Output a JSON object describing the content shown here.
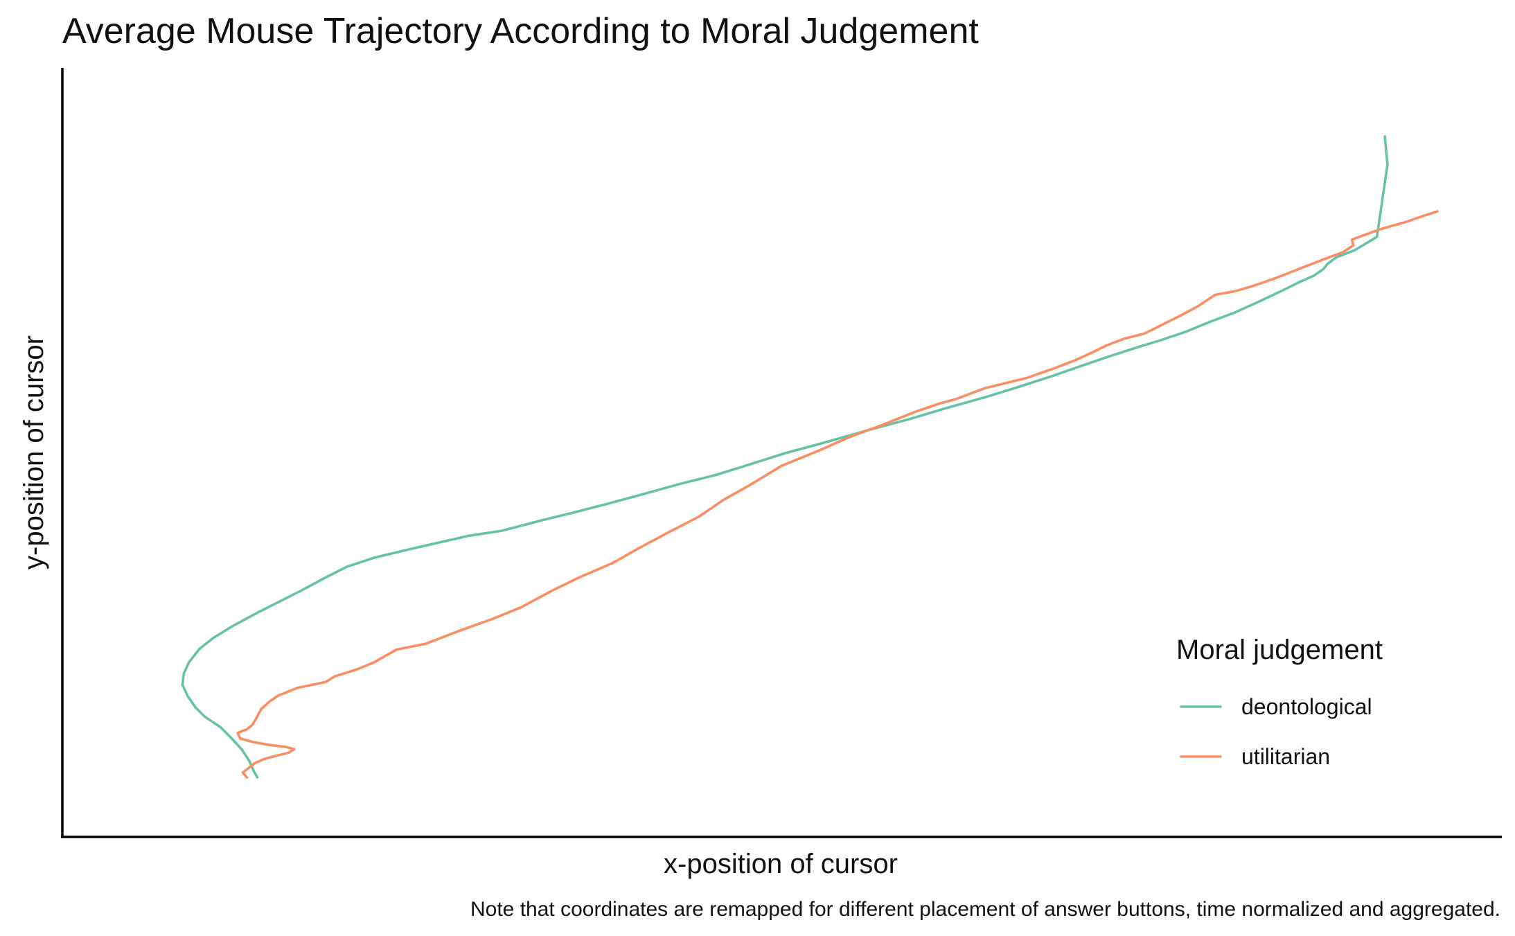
{
  "chart_data": {
    "type": "line",
    "title": "Average Mouse Trajectory According to Moral Judgement",
    "xlabel": "x-position of cursor",
    "ylabel": "y-position of cursor",
    "caption": "Note that coordinates are remapped for different placement of answer buttons, time normalized and aggregated.",
    "xlim": [
      0,
      100
    ],
    "ylim": [
      0,
      100
    ],
    "grid": false,
    "axis_ticks": false,
    "legend": {
      "title": "Moral judgement",
      "placement": "bottom-right",
      "entries": [
        "deontological",
        "utilitarian"
      ]
    },
    "series": [
      {
        "name": "deontological",
        "color": "#66c2a5",
        "points": [
          [
            10.2,
            4.5
          ],
          [
            9.9,
            5.5
          ],
          [
            9.6,
            6.8
          ],
          [
            9.0,
            8.5
          ],
          [
            8.3,
            9.9
          ],
          [
            7.4,
            11.6
          ],
          [
            6.2,
            13.1
          ],
          [
            5.5,
            14.4
          ],
          [
            4.9,
            16.0
          ],
          [
            4.5,
            17.6
          ],
          [
            4.6,
            19.2
          ],
          [
            5.0,
            20.8
          ],
          [
            5.8,
            22.7
          ],
          [
            6.9,
            24.3
          ],
          [
            8.3,
            25.9
          ],
          [
            10.2,
            27.8
          ],
          [
            13.5,
            30.9
          ],
          [
            15.3,
            32.7
          ],
          [
            17.0,
            34.3
          ],
          [
            19.1,
            35.6
          ],
          [
            22.5,
            37.1
          ],
          [
            26.3,
            38.7
          ],
          [
            28.8,
            39.4
          ],
          [
            31.9,
            40.9
          ],
          [
            34.3,
            42.0
          ],
          [
            36.8,
            43.2
          ],
          [
            39.2,
            44.4
          ],
          [
            42.1,
            45.9
          ],
          [
            45.1,
            47.3
          ],
          [
            47.5,
            48.7
          ],
          [
            50.4,
            50.4
          ],
          [
            53.2,
            51.8
          ],
          [
            56.6,
            53.6
          ],
          [
            59.8,
            55.2
          ],
          [
            62.7,
            56.8
          ],
          [
            65.6,
            58.3
          ],
          [
            68.2,
            59.8
          ],
          [
            70.7,
            61.3
          ],
          [
            73.0,
            62.8
          ],
          [
            75.4,
            64.3
          ],
          [
            77.4,
            65.5
          ],
          [
            79.0,
            66.4
          ],
          [
            80.9,
            67.6
          ],
          [
            82.6,
            68.9
          ],
          [
            84.6,
            70.3
          ],
          [
            86.5,
            71.9
          ],
          [
            88.1,
            73.3
          ],
          [
            89.5,
            74.6
          ],
          [
            90.6,
            75.5
          ],
          [
            91.3,
            76.4
          ],
          [
            91.6,
            77.1
          ],
          [
            92.3,
            78.1
          ],
          [
            93.7,
            79.1
          ],
          [
            94.6,
            80.1
          ],
          [
            95.4,
            81.0
          ],
          [
            96.2,
            91.2
          ],
          [
            96.0,
            95.2
          ]
        ]
      },
      {
        "name": "utilitarian",
        "color": "#fc8d62",
        "points": [
          [
            9.4,
            4.5
          ],
          [
            9.1,
            5.2
          ],
          [
            10.0,
            6.5
          ],
          [
            10.7,
            7.1
          ],
          [
            11.5,
            7.5
          ],
          [
            12.6,
            8.0
          ],
          [
            13.0,
            8.5
          ],
          [
            12.4,
            8.8
          ],
          [
            11.1,
            9.1
          ],
          [
            9.9,
            9.5
          ],
          [
            8.9,
            10.0
          ],
          [
            8.7,
            10.8
          ],
          [
            9.4,
            11.3
          ],
          [
            9.8,
            11.9
          ],
          [
            10.1,
            12.8
          ],
          [
            10.5,
            14.2
          ],
          [
            11.1,
            15.2
          ],
          [
            11.8,
            16.1
          ],
          [
            13.3,
            17.2
          ],
          [
            15.4,
            18.0
          ],
          [
            16.1,
            18.8
          ],
          [
            17.8,
            19.8
          ],
          [
            19.1,
            20.8
          ],
          [
            20.8,
            22.6
          ],
          [
            23.0,
            23.4
          ],
          [
            25.5,
            25.2
          ],
          [
            28.2,
            27.0
          ],
          [
            30.3,
            28.6
          ],
          [
            32.6,
            30.9
          ],
          [
            34.7,
            32.8
          ],
          [
            37.2,
            34.8
          ],
          [
            39.3,
            37.0
          ],
          [
            41.5,
            39.2
          ],
          [
            43.8,
            41.4
          ],
          [
            45.7,
            43.8
          ],
          [
            47.7,
            45.9
          ],
          [
            50.1,
            48.6
          ],
          [
            53.0,
            50.8
          ],
          [
            55.3,
            52.7
          ],
          [
            57.8,
            54.4
          ],
          [
            60.2,
            56.2
          ],
          [
            62.1,
            57.4
          ],
          [
            63.3,
            58.0
          ],
          [
            65.6,
            59.6
          ],
          [
            68.7,
            61.0
          ],
          [
            70.7,
            62.3
          ],
          [
            72.4,
            63.5
          ],
          [
            73.8,
            64.7
          ],
          [
            74.9,
            65.7
          ],
          [
            76.2,
            66.6
          ],
          [
            77.7,
            67.3
          ],
          [
            79.1,
            68.6
          ],
          [
            80.6,
            70.0
          ],
          [
            81.8,
            71.2
          ],
          [
            83.1,
            72.8
          ],
          [
            84.6,
            73.3
          ],
          [
            85.9,
            74.0
          ],
          [
            87.6,
            75.1
          ],
          [
            89.4,
            76.4
          ],
          [
            90.5,
            77.2
          ],
          [
            91.6,
            78.0
          ],
          [
            92.8,
            78.8
          ],
          [
            93.6,
            79.8
          ],
          [
            93.5,
            80.6
          ],
          [
            94.5,
            81.3
          ],
          [
            95.7,
            82.1
          ],
          [
            97.6,
            83.1
          ],
          [
            99.0,
            84.0
          ],
          [
            100.0,
            84.6
          ]
        ]
      }
    ]
  }
}
